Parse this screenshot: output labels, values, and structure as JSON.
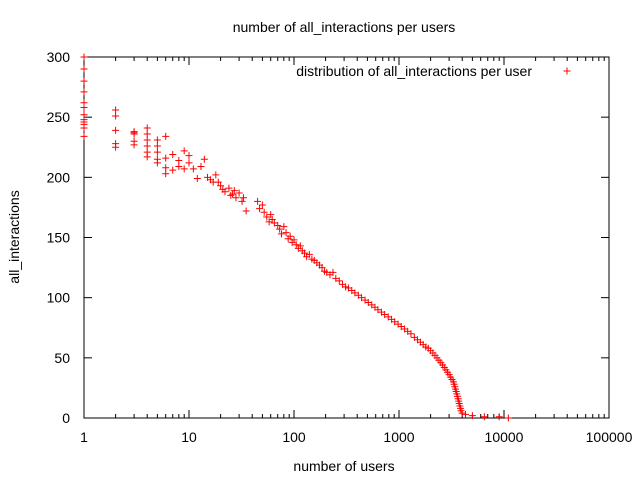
{
  "chart_data": {
    "type": "scatter",
    "title": "number of all_interactions per users",
    "xlabel": "number of users",
    "ylabel": "all_interactions",
    "x_scale": "log",
    "xlim": [
      1,
      100000
    ],
    "ylim": [
      0,
      300
    ],
    "x_ticks": [
      1,
      10,
      100,
      1000,
      10000,
      100000
    ],
    "x_tick_labels": [
      "1",
      "10",
      "100",
      "1000",
      "10000",
      "100000"
    ],
    "y_ticks": [
      0,
      50,
      100,
      150,
      200,
      250,
      300
    ],
    "y_tick_labels": [
      "0",
      "50",
      "100",
      "150",
      "200",
      "250",
      "300"
    ],
    "grid": false,
    "legend_position": "top-right",
    "marker": "+",
    "series": [
      {
        "name": "distribution of all_interactions per user",
        "color": "#ff0000",
        "points": [
          [
            1,
            300
          ],
          [
            1,
            290
          ],
          [
            1,
            280
          ],
          [
            1,
            271
          ],
          [
            1,
            262
          ],
          [
            1,
            258
          ],
          [
            1,
            252
          ],
          [
            1,
            248
          ],
          [
            1,
            246
          ],
          [
            1,
            244
          ],
          [
            1,
            241
          ],
          [
            1,
            234
          ],
          [
            2,
            256
          ],
          [
            2,
            251
          ],
          [
            2,
            239
          ],
          [
            2,
            228
          ],
          [
            2,
            225
          ],
          [
            3,
            238
          ],
          [
            3,
            237
          ],
          [
            3,
            236
          ],
          [
            3,
            230
          ],
          [
            3,
            227
          ],
          [
            4,
            241
          ],
          [
            4,
            236
          ],
          [
            4,
            231
          ],
          [
            4,
            226
          ],
          [
            4,
            221
          ],
          [
            4,
            217
          ],
          [
            5,
            231
          ],
          [
            5,
            226
          ],
          [
            5,
            221
          ],
          [
            5,
            215
          ],
          [
            5,
            212
          ],
          [
            6,
            234
          ],
          [
            6,
            216
          ],
          [
            6,
            208
          ],
          [
            6,
            203
          ],
          [
            7,
            219
          ],
          [
            7,
            206
          ],
          [
            8,
            214
          ],
          [
            8,
            209
          ],
          [
            9,
            222
          ],
          [
            9,
            207
          ],
          [
            10,
            218
          ],
          [
            10,
            212
          ],
          [
            11,
            207
          ],
          [
            12,
            199
          ],
          [
            13,
            209
          ],
          [
            14,
            215
          ],
          [
            15,
            200
          ],
          [
            16,
            198
          ],
          [
            17,
            196
          ],
          [
            18,
            202
          ],
          [
            19,
            196
          ],
          [
            20,
            193
          ],
          [
            21,
            190
          ],
          [
            22,
            188
          ],
          [
            24,
            191
          ],
          [
            25,
            185
          ],
          [
            26,
            186
          ],
          [
            27,
            189
          ],
          [
            28,
            183
          ],
          [
            30,
            187
          ],
          [
            32,
            180
          ],
          [
            33,
            183
          ],
          [
            35,
            172
          ],
          [
            45,
            180
          ],
          [
            47,
            174
          ],
          [
            50,
            177
          ],
          [
            52,
            171
          ],
          [
            55,
            167
          ],
          [
            58,
            163
          ],
          [
            60,
            169
          ],
          [
            62,
            165
          ],
          [
            65,
            162
          ],
          [
            70,
            160
          ],
          [
            73,
            157
          ],
          [
            76,
            153
          ],
          [
            80,
            159
          ],
          [
            84,
            154
          ],
          [
            88,
            149
          ],
          [
            92,
            151
          ],
          [
            96,
            146
          ],
          [
            100,
            148
          ],
          [
            105,
            144
          ],
          [
            110,
            141
          ],
          [
            115,
            143
          ],
          [
            120,
            139
          ],
          [
            126,
            137
          ],
          [
            132,
            134
          ],
          [
            140,
            136
          ],
          [
            148,
            132
          ],
          [
            156,
            131
          ],
          [
            165,
            129
          ],
          [
            175,
            127
          ],
          [
            185,
            125
          ],
          [
            195,
            122
          ],
          [
            205,
            121
          ],
          [
            220,
            119
          ],
          [
            235,
            121
          ],
          [
            250,
            116
          ],
          [
            270,
            114
          ],
          [
            290,
            111
          ],
          [
            310,
            109
          ],
          [
            330,
            108
          ],
          [
            355,
            106
          ],
          [
            380,
            104
          ],
          [
            410,
            102
          ],
          [
            440,
            100
          ],
          [
            475,
            98
          ],
          [
            510,
            96
          ],
          [
            550,
            94
          ],
          [
            590,
            92
          ],
          [
            630,
            90
          ],
          [
            680,
            88
          ],
          [
            730,
            86
          ],
          [
            790,
            84
          ],
          [
            850,
            82
          ],
          [
            910,
            80
          ],
          [
            980,
            78
          ],
          [
            1050,
            76
          ],
          [
            1130,
            74
          ],
          [
            1210,
            72
          ],
          [
            1300,
            70
          ],
          [
            1400,
            67
          ],
          [
            1500,
            65
          ],
          [
            1600,
            63
          ],
          [
            1700,
            61
          ],
          [
            1800,
            59
          ],
          [
            1900,
            58
          ],
          [
            2000,
            56
          ],
          [
            2100,
            54
          ],
          [
            2200,
            52
          ],
          [
            2300,
            50
          ],
          [
            2400,
            48
          ],
          [
            2500,
            46
          ],
          [
            2600,
            44
          ],
          [
            2700,
            42
          ],
          [
            2800,
            40
          ],
          [
            2900,
            38
          ],
          [
            3000,
            36
          ],
          [
            3100,
            34
          ],
          [
            3200,
            32
          ],
          [
            3300,
            30
          ],
          [
            3350,
            28
          ],
          [
            3400,
            26
          ],
          [
            3450,
            24
          ],
          [
            3500,
            22
          ],
          [
            3550,
            20
          ],
          [
            3600,
            18
          ],
          [
            3650,
            16
          ],
          [
            3700,
            14
          ],
          [
            3750,
            12
          ],
          [
            3800,
            10
          ],
          [
            3850,
            8
          ],
          [
            3900,
            6
          ],
          [
            4000,
            4
          ],
          [
            4300,
            3
          ],
          [
            5000,
            2
          ],
          [
            6500,
            1
          ],
          [
            9000,
            1
          ],
          [
            11000,
            0
          ]
        ]
      }
    ]
  }
}
